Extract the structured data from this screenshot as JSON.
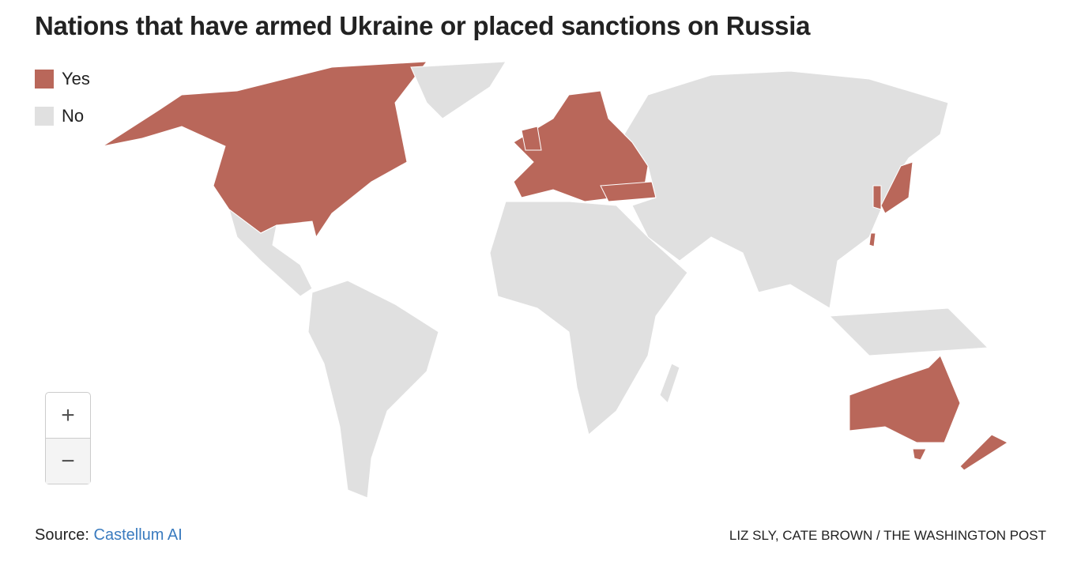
{
  "header": {
    "title": "Nations that have armed Ukraine or placed sanctions on Russia"
  },
  "legend": [
    {
      "label": "Yes",
      "color": "#b9675a"
    },
    {
      "label": "No",
      "color": "#e0e0e0"
    }
  ],
  "zoom": {
    "in": "+",
    "out": "−"
  },
  "footer": {
    "source_label": "Source:",
    "source_link": "Castellum AI",
    "credit": "LIZ SLY, CATE BROWN / THE WASHINGTON POST"
  }
}
